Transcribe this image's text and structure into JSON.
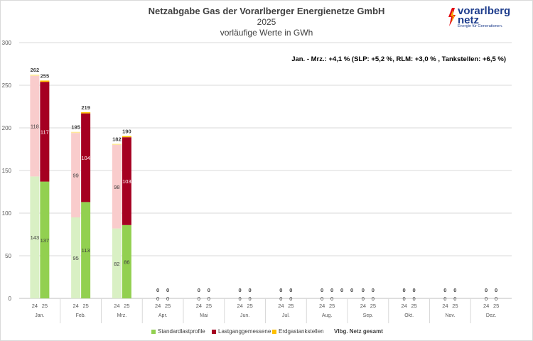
{
  "chart_data": {
    "type": "bar",
    "title": "Netzabgabe Gas der Vorarlberger Energienetze GmbH",
    "subtitle": "2025",
    "unit_label": "vorläufige Werte in GWh",
    "annotation": "Jan. - Mrz.: +4,1 % (SLP: +5,2 %, RLM: +3,0 % , Tankstellen: +6,5 %)",
    "ylim": [
      0,
      300
    ],
    "yticks": [
      "0",
      "50",
      "100",
      "150",
      "200",
      "250",
      "300"
    ],
    "grid": true,
    "months": [
      {
        "label": "Jan.",
        "bars": [
          {
            "year": "24",
            "slp": 143,
            "rlm": 118,
            "tank": 1.5,
            "total": 262,
            "show_labels": true
          },
          {
            "year": "25",
            "slp": 137,
            "rlm": 117,
            "tank": 1.5,
            "total": 255,
            "show_labels": true
          }
        ]
      },
      {
        "label": "Feb.",
        "bars": [
          {
            "year": "24",
            "slp": 95,
            "rlm": 99,
            "tank": 1.3,
            "total": 195,
            "show_labels": true
          },
          {
            "year": "25",
            "slp": 113,
            "rlm": 104,
            "tank": 1.4,
            "total": 219,
            "show_labels": true
          }
        ]
      },
      {
        "label": "Mrz.",
        "bars": [
          {
            "year": "24",
            "slp": 82,
            "rlm": 98,
            "tank": 1.3,
            "total": 182,
            "show_labels": true
          },
          {
            "year": "25",
            "slp": 86,
            "rlm": 103,
            "tank": 1.4,
            "total": 190,
            "show_labels": true
          }
        ]
      },
      {
        "label": "Apr.",
        "bars": [
          {
            "year": "24",
            "total": 0
          },
          {
            "year": "25",
            "total": 0
          }
        ]
      },
      {
        "label": "Mai",
        "bars": [
          {
            "year": "24",
            "total": 0
          },
          {
            "year": "25",
            "total": 0
          }
        ]
      },
      {
        "label": "Jun.",
        "bars": [
          {
            "year": "24",
            "total": 0
          },
          {
            "year": "25",
            "total": 0
          }
        ]
      },
      {
        "label": "Jul.",
        "bars": [
          {
            "year": "24",
            "total": 0
          },
          {
            "year": "25",
            "total": 0
          }
        ]
      },
      {
        "label": "Aug.",
        "bars": [
          {
            "year": "24",
            "total": 0
          },
          {
            "year": "25",
            "total": 0
          }
        ],
        "extra_zero_labels": [
          "0",
          "0"
        ]
      },
      {
        "label": "Sep.",
        "bars": [
          {
            "year": "24",
            "total": 0
          },
          {
            "year": "25",
            "total": 0
          }
        ]
      },
      {
        "label": "Okt.",
        "bars": [
          {
            "year": "24",
            "total": 0
          },
          {
            "year": "25",
            "total": 0
          }
        ]
      },
      {
        "label": "Nov.",
        "bars": [
          {
            "year": "24",
            "total": 0
          },
          {
            "year": "25",
            "total": 0
          }
        ]
      },
      {
        "label": "Dez.",
        "bars": [
          {
            "year": "24",
            "total": 0
          },
          {
            "year": "25",
            "total": 0
          }
        ]
      }
    ],
    "series": [
      {
        "name": "Standardlastprofile",
        "color25": "#92d050",
        "color24": "#d9f0c4"
      },
      {
        "name": "Lastganggemessene",
        "color25": "#a50021",
        "color24": "#f9cccc"
      },
      {
        "name": "Erdgastankstellen",
        "color25": "#ffc000",
        "color24": "#ffe699"
      }
    ],
    "legend_total": "Vlbg. Netz gesamt"
  },
  "logo": {
    "line1": "vorarlberg",
    "line2": "netz",
    "tagline": "Energie für Generationen."
  }
}
